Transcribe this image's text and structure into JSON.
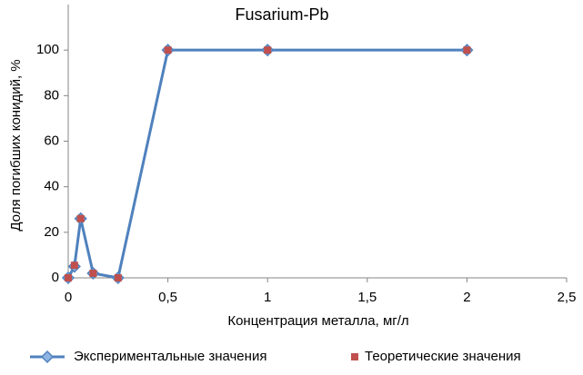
{
  "chart_data": {
    "type": "line",
    "title": "Fusarium-Pb",
    "xlabel": "Концентрация металла, мг/л",
    "ylabel": "Доля погибших конидий, %",
    "series": [
      {
        "name": "Экспериментальные значения",
        "color": "#4f81bd",
        "marker": "diamond",
        "show_line": true,
        "x": [
          0,
          0.03125,
          0.0625,
          0.125,
          0.25,
          0.5,
          1,
          2
        ],
        "values": [
          0,
          5,
          26,
          2,
          0,
          100,
          100,
          100
        ]
      },
      {
        "name": "Теоретические значения",
        "color": "#c0504d",
        "marker": "square",
        "show_line": false,
        "x": [
          0,
          0.03125,
          0.0625,
          0.125,
          0.25,
          0.5,
          1,
          2
        ],
        "values": [
          0,
          5.5,
          26,
          2,
          0,
          100,
          100,
          100
        ]
      }
    ],
    "xlim": [
      0,
      2.5
    ],
    "xticks": [
      0,
      {
        "value": 0.5,
        "label": "0,5"
      },
      1,
      {
        "value": 1.5,
        "label": "1,5"
      },
      2,
      {
        "value": 2.5,
        "label": "2,5"
      }
    ],
    "ylim": [
      0,
      120
    ],
    "yticks": [
      0,
      20,
      40,
      60,
      80,
      100
    ],
    "grid": false,
    "legend": "bottom"
  }
}
